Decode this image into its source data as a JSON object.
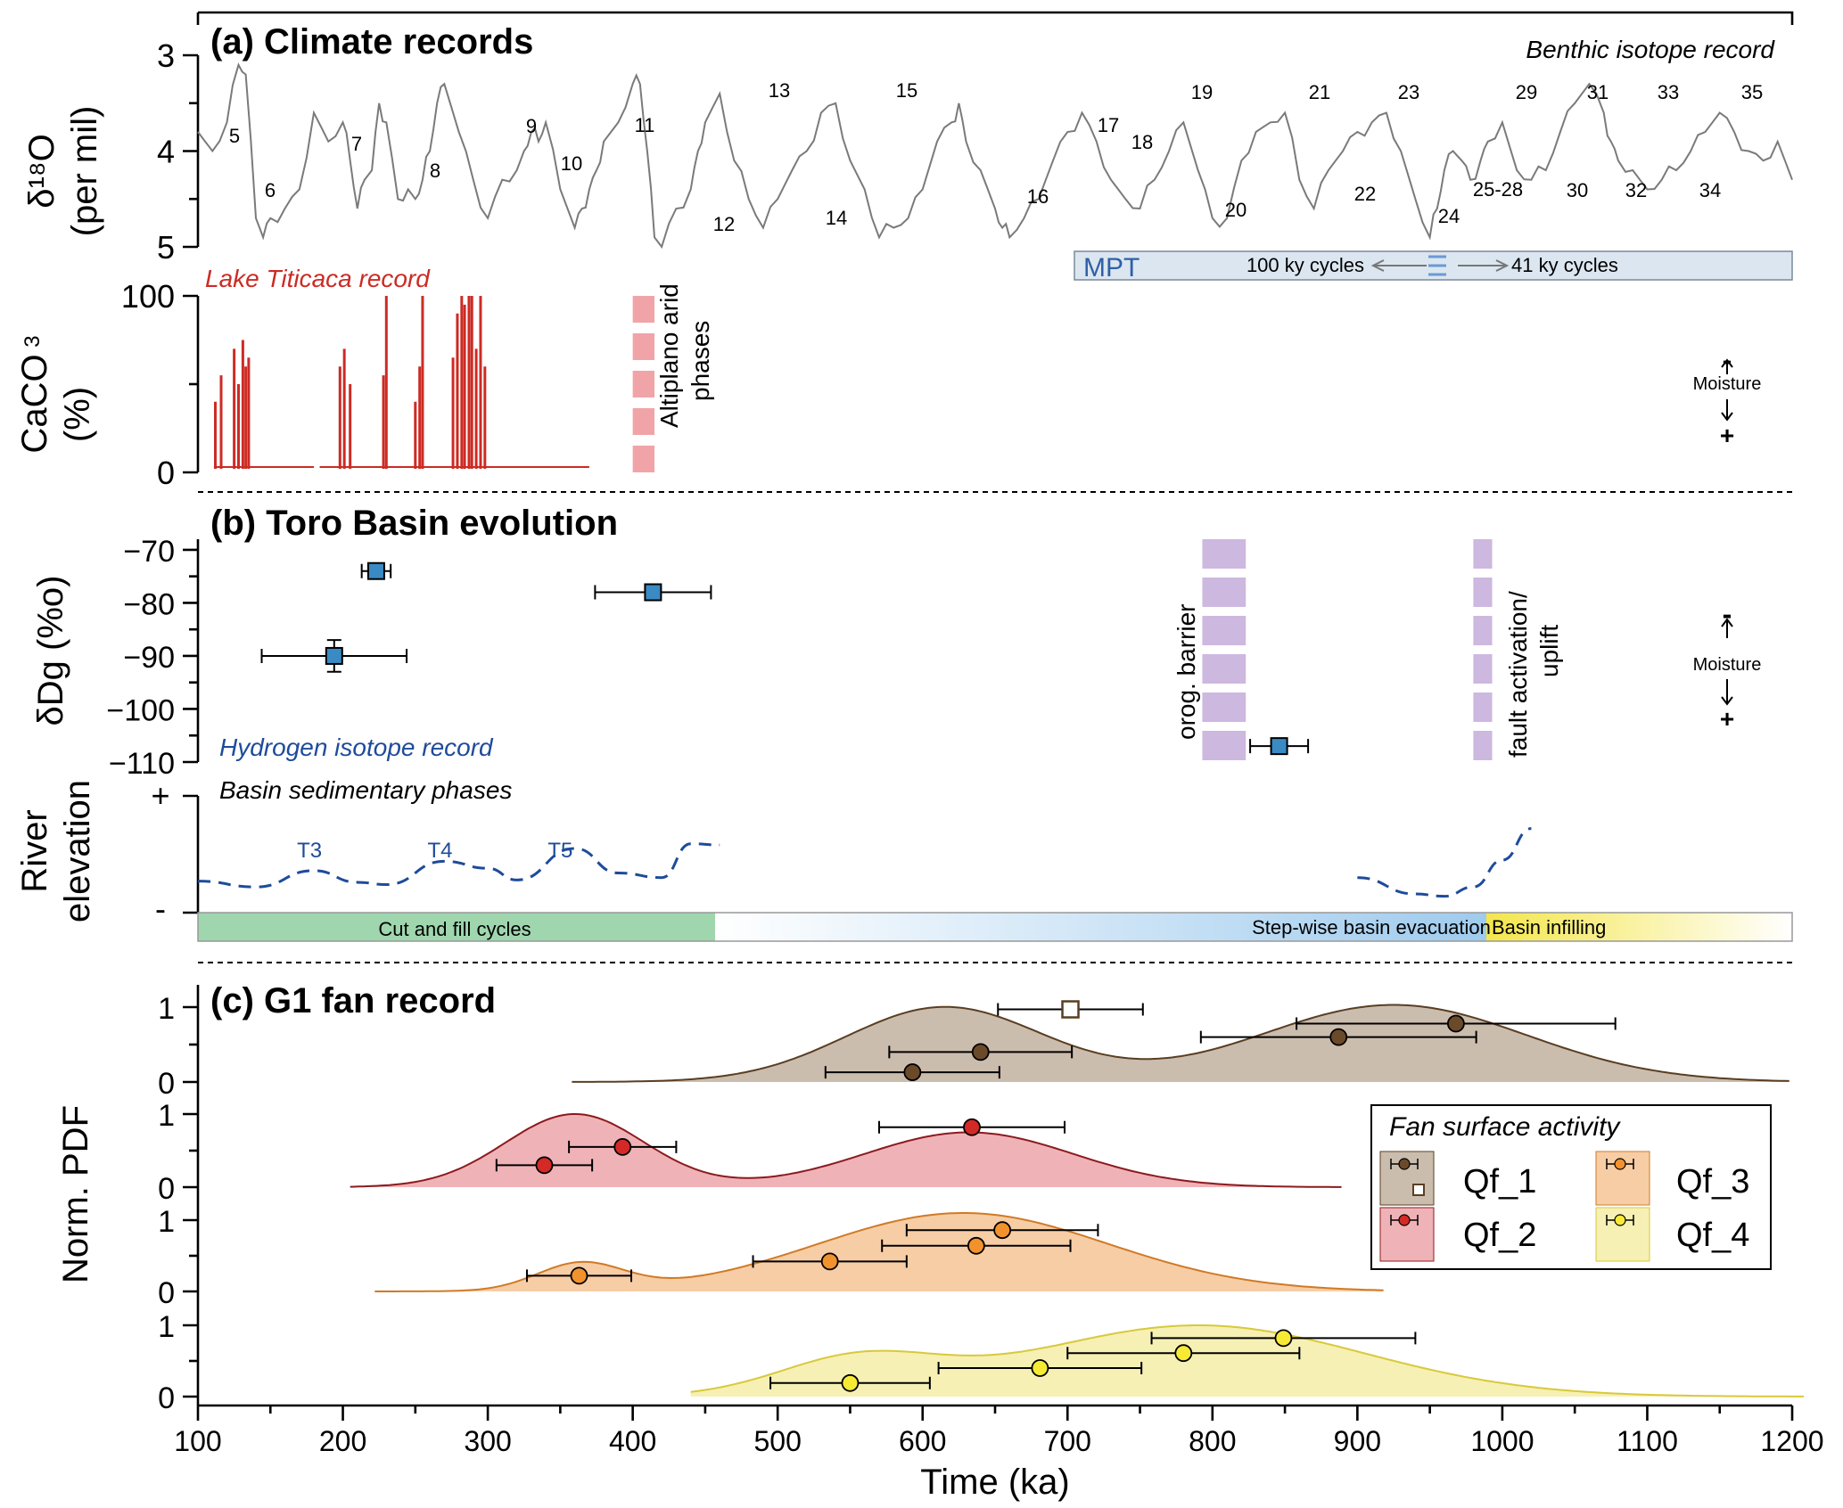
{
  "colors": {
    "benthic": "#7a7a7a",
    "titicaca": "#cc2b24",
    "arid": "#f0a4a8",
    "barrier": "#cdb8e0",
    "hydrogen_marker": "#3a8ac4",
    "river": "#1e4b9a",
    "qf1_fill": "#cbbdae",
    "qf1_line": "#5a3e22",
    "qf1_marker": "#6b4a2a",
    "qf2_fill": "#efb3b7",
    "qf2_line": "#8c1a1e",
    "qf2_marker": "#d32a27",
    "qf3_fill": "#f7cda6",
    "qf3_line": "#d07a26",
    "qf3_marker": "#f1922d",
    "qf4_fill": "#f6f0b5",
    "qf4_line": "#d8c93a",
    "qf4_marker": "#f6ea35",
    "mpt_fill": "#dbe6f0",
    "mpt_text": "#2f5fa8",
    "cut_fill": "#9fd6ae",
    "evac_fill": "#9fcbee",
    "infill_fill": "#f4e64c"
  },
  "panel_a": {
    "title": "(a) Climate records",
    "benthic_label": "Benthic isotope record",
    "ylabel_line1": "δ¹⁸O",
    "ylabel_line2": "(per mil)",
    "yticks": [
      "3",
      "4",
      "5"
    ],
    "mis_labels": [
      "5",
      "6",
      "7",
      "8",
      "9",
      "10",
      "11",
      "12",
      "13",
      "14",
      "15",
      "16",
      "17",
      "18",
      "19",
      "20",
      "21",
      "22",
      "23",
      "24",
      "25-28",
      "29",
      "30",
      "31",
      "32",
      "33",
      "34",
      "35"
    ],
    "mpt": {
      "label": "MPT",
      "left_text": "100 ky cycles",
      "right_text": "41 ky cycles"
    },
    "titicaca_label": "Lake Titicaca record",
    "caco3_ylabel_line1": "CaCO",
    "caco3_ylabel_sub": "3",
    "caco3_ylabel_line2": "(%)",
    "caco3_yticks": [
      "100",
      "0"
    ],
    "arid_label_line1": "Altiplano arid",
    "arid_label_line2": "phases",
    "moisture": {
      "minus": "-",
      "label": "Moisture",
      "plus": "+"
    }
  },
  "panel_b": {
    "title": "(b) Toro Basin evolution",
    "ylabel": "δDg (%o)",
    "yticks": [
      "−70",
      "−80",
      "−90",
      "−100",
      "−110"
    ],
    "barrier_label": "orog. barrier",
    "fault_label_line1": "fault activation/",
    "fault_label_line2": "uplift",
    "hydrogen_label": "Hydrogen isotope record",
    "phases_label": "Basin sedimentary phases",
    "river_ylabel_line1": "River",
    "river_ylabel_line2": "elevation",
    "river_yticks": [
      "+",
      "-"
    ],
    "terraces": [
      "T3",
      "T4",
      "T5"
    ],
    "phase_bars": [
      "Cut and fill cycles",
      "Step-wise basin evacuation",
      "Basin infilling"
    ],
    "moisture": {
      "minus": "-",
      "label": "Moisture",
      "plus": "+"
    }
  },
  "panel_c": {
    "title": "(c) G1 fan record",
    "ylabel": "Norm. PDF",
    "yticks": [
      "1",
      "0"
    ],
    "legend_title": "Fan surface activity",
    "legend": [
      "Qf_1",
      "Qf_2",
      "Qf_3",
      "Qf_4"
    ]
  },
  "x_axis": {
    "label": "Time (ka)",
    "ticks": [
      "100",
      "200",
      "300",
      "400",
      "500",
      "600",
      "700",
      "800",
      "900",
      "1000",
      "1100",
      "1200"
    ]
  },
  "chart_data": [
    {
      "type": "line",
      "title": "(a) Climate records",
      "series_name": "Benthic isotope record",
      "ylabel": "δ¹⁸O (per mil)",
      "ylim": [
        5,
        3
      ],
      "xlim": [
        100,
        1200
      ],
      "y_inverted": true,
      "x": [
        100,
        110,
        120,
        128,
        133,
        140,
        145,
        150,
        160,
        170,
        180,
        190,
        200,
        205,
        210,
        215,
        220,
        225,
        230,
        238,
        245,
        250,
        255,
        260,
        265,
        270,
        280,
        290,
        300,
        310,
        320,
        325,
        330,
        335,
        340,
        350,
        360,
        365,
        370,
        375,
        380,
        390,
        400,
        405,
        410,
        415,
        420,
        430,
        440,
        445,
        450,
        460,
        470,
        480,
        490,
        500,
        510,
        520,
        530,
        540,
        550,
        560,
        570,
        580,
        590,
        600,
        610,
        620,
        625,
        630,
        640,
        650,
        655,
        660,
        670,
        680,
        690,
        700,
        710,
        720,
        730,
        740,
        750,
        760,
        770,
        780,
        790,
        800,
        810,
        820,
        830,
        840,
        850,
        860,
        870,
        880,
        890,
        900,
        910,
        920,
        930,
        940,
        950,
        955,
        960,
        966,
        972,
        978,
        985,
        990,
        1000,
        1010,
        1020,
        1030,
        1040,
        1050,
        1060,
        1070,
        1075,
        1080,
        1090,
        1100,
        1110,
        1120,
        1130,
        1140,
        1150,
        1160,
        1170,
        1180,
        1190,
        1200
      ],
      "y": [
        3.8,
        4.0,
        3.7,
        3.1,
        3.2,
        4.7,
        4.9,
        4.7,
        4.6,
        4.4,
        3.6,
        3.9,
        3.7,
        4.1,
        4.6,
        4.3,
        4.2,
        3.5,
        3.7,
        4.5,
        4.4,
        4.5,
        4.3,
        4.0,
        3.5,
        3.3,
        3.8,
        4.3,
        4.7,
        4.3,
        4.2,
        4.0,
        3.8,
        3.9,
        3.7,
        4.4,
        4.8,
        4.6,
        4.4,
        4.2,
        3.9,
        3.7,
        3.3,
        3.3,
        4.0,
        4.9,
        5.0,
        4.6,
        4.4,
        4.0,
        3.7,
        3.4,
        4.1,
        4.5,
        4.8,
        4.5,
        4.2,
        4.0,
        3.6,
        3.5,
        4.1,
        4.4,
        4.9,
        4.8,
        4.7,
        4.4,
        3.9,
        3.7,
        3.5,
        3.9,
        4.2,
        4.6,
        4.8,
        4.9,
        4.7,
        4.5,
        4.1,
        3.8,
        3.6,
        3.9,
        4.3,
        4.5,
        4.6,
        4.3,
        4.0,
        3.7,
        4.2,
        4.7,
        4.7,
        4.1,
        3.8,
        3.7,
        3.6,
        4.3,
        4.6,
        4.2,
        4.0,
        3.8,
        3.7,
        3.6,
        4.0,
        4.5,
        4.9,
        4.6,
        4.2,
        4.0,
        4.1,
        4.3,
        4.1,
        3.9,
        3.7,
        4.2,
        4.3,
        4.2,
        3.8,
        3.5,
        3.3,
        3.6,
        3.9,
        4.1,
        4.2,
        4.4,
        4.3,
        4.2,
        4.0,
        3.8,
        3.6,
        3.8,
        4.0,
        4.1,
        3.9,
        4.3
      ]
    },
    {
      "type": "area",
      "series_name": "Lake Titicaca record",
      "ylabel": "CaCO3 (%)",
      "ylim": [
        0,
        100
      ],
      "xlim": [
        100,
        1200
      ],
      "spikes_x": [
        112,
        116,
        125,
        128,
        131,
        133,
        135,
        198,
        201,
        205,
        228,
        230,
        250,
        253,
        255,
        276,
        279,
        282,
        284,
        287,
        289,
        292,
        295,
        298
      ],
      "spikes_y": [
        40,
        55,
        70,
        50,
        75,
        60,
        65,
        60,
        70,
        50,
        55,
        100,
        40,
        60,
        100,
        65,
        90,
        100,
        95,
        100,
        100,
        70,
        100,
        60
      ]
    },
    {
      "type": "bar",
      "series_name": "Altiplano arid phases",
      "x_range": [
        400,
        415
      ],
      "segments": 5
    },
    {
      "type": "scatter",
      "title": "(b) Toro Basin evolution",
      "series_name": "Hydrogen isotope record",
      "ylabel": "δDg (%o)",
      "ylim": [
        -110,
        -68
      ],
      "xlim": [
        100,
        1200
      ],
      "points": [
        {
          "x": 223,
          "y": -74,
          "xerr": 10,
          "yerr": 0
        },
        {
          "x": 414,
          "y": -78,
          "xerr": 40,
          "yerr": 0
        },
        {
          "x": 194,
          "y": -90,
          "xerr": 50,
          "yerr": 3
        },
        {
          "x": 846,
          "y": -107,
          "xerr": 20,
          "yerr": 0
        }
      ]
    },
    {
      "type": "bar",
      "series_name": "orog. barrier",
      "x_range": [
        793,
        823
      ],
      "segments": 6
    },
    {
      "type": "bar",
      "series_name": "fault activation/uplift",
      "x_range": [
        980,
        993
      ],
      "segments": 6
    },
    {
      "type": "line",
      "series_name": "Basin sedimentary phases",
      "ylabel": "River elevation",
      "ylim": [
        0,
        1
      ],
      "x": [
        100,
        140,
        180,
        210,
        230,
        270,
        300,
        320,
        360,
        390,
        420,
        440,
        460,
        900,
        940,
        960,
        980,
        1000,
        1020
      ],
      "y": [
        0.27,
        0.22,
        0.36,
        0.26,
        0.24,
        0.44,
        0.38,
        0.28,
        0.55,
        0.34,
        0.3,
        0.59,
        0.58,
        0.3,
        0.16,
        0.14,
        0.22,
        0.45,
        0.72
      ],
      "gaps_after_x": [
        460
      ],
      "labels": [
        {
          "x": 177,
          "text": "T3"
        },
        {
          "x": 267,
          "text": "T4"
        },
        {
          "x": 350,
          "text": "T5"
        }
      ],
      "phases": [
        {
          "text": "Cut and fill cycles",
          "x": [
            100,
            456
          ]
        },
        {
          "text": "Step-wise basin evacuation",
          "x": [
            456,
            987
          ]
        },
        {
          "text": "Basin infilling",
          "x": [
            987,
            1200
          ]
        }
      ]
    },
    {
      "type": "area",
      "title": "(c) G1 fan record",
      "ylabel": "Norm. PDF",
      "xlabel": "Time (ka)",
      "xlim": [
        100,
        1200
      ],
      "ylim": [
        0,
        1
      ],
      "series": [
        {
          "name": "Qf_1",
          "x_range": [
            358,
            1200
          ],
          "components": [
            {
              "mu": 615,
              "sigma": 68,
              "amp": 1.0
            },
            {
              "mu": 925,
              "sigma": 92,
              "amp": 1.03
            }
          ],
          "points": [
            {
              "x": 702,
              "y": 0.97,
              "xerr": 50,
              "open": true
            },
            {
              "x": 968,
              "y": 0.78,
              "xerr": 110
            },
            {
              "x": 887,
              "y": 0.6,
              "xerr": 95
            },
            {
              "x": 640,
              "y": 0.4,
              "xerr": 63
            },
            {
              "x": 593,
              "y": 0.13,
              "xerr": 60
            }
          ]
        },
        {
          "name": "Qf_2",
          "x_range": [
            205,
            890
          ],
          "components": [
            {
              "mu": 360,
              "sigma": 48,
              "amp": 1.0
            },
            {
              "mu": 632,
              "sigma": 72,
              "amp": 0.75
            }
          ],
          "points": [
            {
              "x": 634,
              "y": 0.82,
              "xerr": 64
            },
            {
              "x": 393,
              "y": 0.55,
              "xerr": 37
            },
            {
              "x": 339,
              "y": 0.3,
              "xerr": 33
            }
          ]
        },
        {
          "name": "Qf_3",
          "x_range": [
            222,
            920
          ],
          "components": [
            {
              "mu": 364,
              "sigma": 30,
              "amp": 0.38
            },
            {
              "mu": 628,
              "sigma": 100,
              "amp": 1.1
            }
          ],
          "points": [
            {
              "x": 655,
              "y": 0.86,
              "xerr": 66
            },
            {
              "x": 637,
              "y": 0.64,
              "xerr": 65
            },
            {
              "x": 536,
              "y": 0.42,
              "xerr": 53
            },
            {
              "x": 363,
              "y": 0.22,
              "xerr": 36
            }
          ]
        },
        {
          "name": "Qf_4",
          "x_range": [
            440,
            1210
          ],
          "components": [
            {
              "mu": 555,
              "sigma": 55,
              "amp": 0.5
            },
            {
              "mu": 790,
              "sigma": 115,
              "amp": 1.0
            }
          ],
          "points": [
            {
              "x": 849,
              "y": 0.82,
              "xerr": 91
            },
            {
              "x": 780,
              "y": 0.61,
              "xerr": 80
            },
            {
              "x": 681,
              "y": 0.4,
              "xerr": 70
            },
            {
              "x": 550,
              "y": 0.19,
              "xerr": 55
            }
          ]
        }
      ]
    }
  ]
}
